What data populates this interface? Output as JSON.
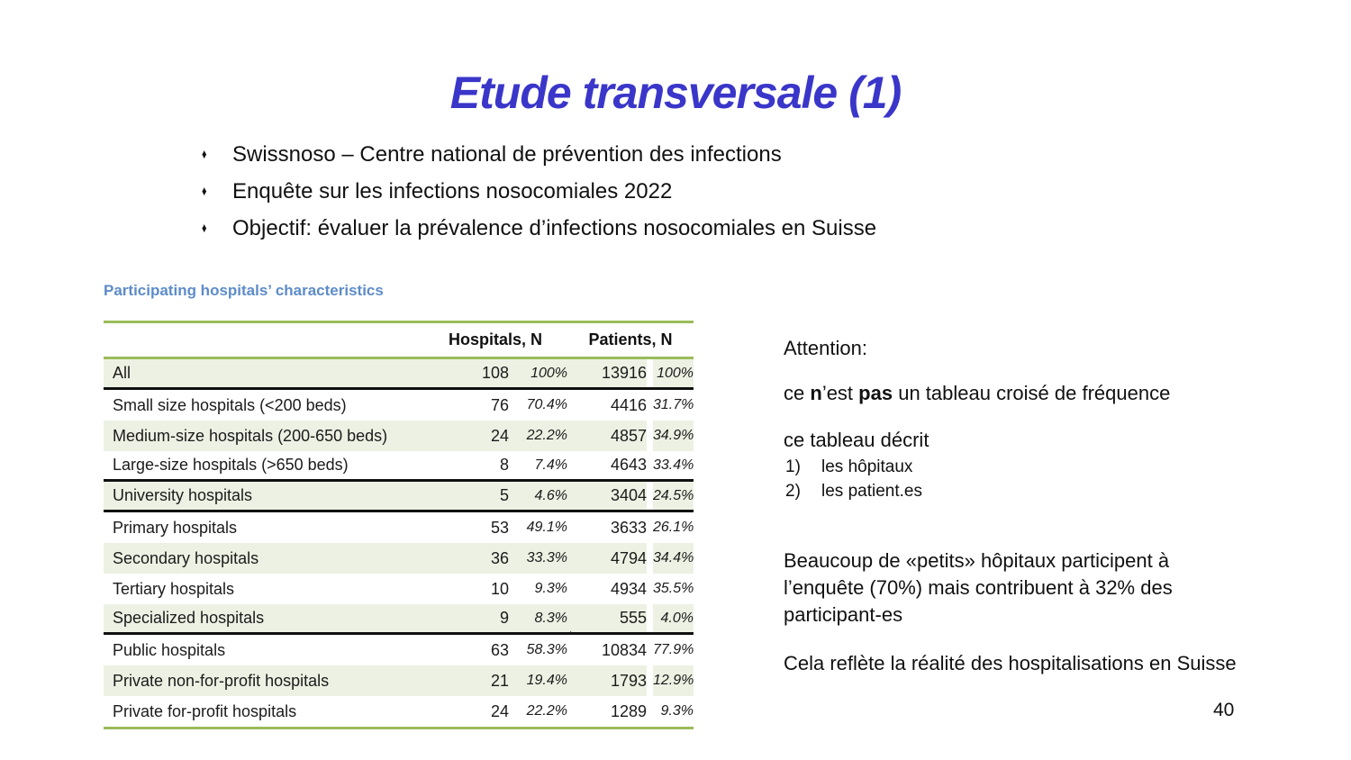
{
  "slide": {
    "title": "Etude transversale (1)",
    "bullet_glyph": "♦",
    "page_number": "40"
  },
  "bullets": [
    "Swissnoso – Centre national de prévention des infections",
    "Enquête sur les infections nosocomiales 2022",
    "Objectif: évaluer la prévalence d’infections nosocomiales en Suisse"
  ],
  "table": {
    "title": "Participating hospitals’ characteristics",
    "col_groups": {
      "hospitals": "Hospitals, N",
      "patients": "Patients, N"
    },
    "rows": [
      {
        "label": "All",
        "hospitals_n": "108",
        "hospitals_pct": "100%",
        "patients_n": "13916",
        "patients_pct": "100%",
        "section_end": true
      },
      {
        "label": "Small size hospitals (<200 beds)",
        "hospitals_n": "76",
        "hospitals_pct": "70.4%",
        "patients_n": "4416",
        "patients_pct": "31.7%"
      },
      {
        "label": "Medium-size hospitals (200-650 beds)",
        "hospitals_n": "24",
        "hospitals_pct": "22.2%",
        "patients_n": "4857",
        "patients_pct": "34.9%"
      },
      {
        "label": "Large-size hospitals (>650 beds)",
        "hospitals_n": "8",
        "hospitals_pct": "7.4%",
        "patients_n": "4643",
        "patients_pct": "33.4%",
        "section_end": true
      },
      {
        "label": "University hospitals",
        "hospitals_n": "5",
        "hospitals_pct": "4.6%",
        "patients_n": "3404",
        "patients_pct": "24.5%",
        "section_end": true
      },
      {
        "label": "Primary hospitals",
        "hospitals_n": "53",
        "hospitals_pct": "49.1%",
        "patients_n": "3633",
        "patients_pct": "26.1%"
      },
      {
        "label": "Secondary hospitals",
        "hospitals_n": "36",
        "hospitals_pct": "33.3%",
        "patients_n": "4794",
        "patients_pct": "34.4%"
      },
      {
        "label": "Tertiary hospitals",
        "hospitals_n": "10",
        "hospitals_pct": "9.3%",
        "patients_n": "4934",
        "patients_pct": "35.5%"
      },
      {
        "label": "Specialized hospitals",
        "hospitals_n": "9",
        "hospitals_pct": "8.3%",
        "patients_n": "555",
        "patients_pct": "4.0%",
        "section_end": true
      },
      {
        "label": "Public hospitals",
        "hospitals_n": "63",
        "hospitals_pct": "58.3%",
        "patients_n": "10834",
        "patients_pct": "77.9%",
        "mark": "·"
      },
      {
        "label": "Private non-for-profit hospitals",
        "hospitals_n": "21",
        "hospitals_pct": "19.4%",
        "patients_n": "1793",
        "patients_pct": "12.9%"
      },
      {
        "label": "Private for-profit hospitals",
        "hospitals_n": "24",
        "hospitals_pct": "22.2%",
        "patients_n": "1289",
        "patients_pct": "9.3%"
      }
    ]
  },
  "notes": {
    "attention": "Attention:",
    "not_crosstab": [
      {
        "text": "ce "
      },
      {
        "text": "n",
        "bold": true
      },
      {
        "text": "’est "
      },
      {
        "text": "pas",
        "bold": true
      },
      {
        "text": " un tableau croisé de fréquence"
      }
    ],
    "describes": "ce tableau décrit",
    "list": [
      {
        "num": "1)",
        "text": "les hôpitaux"
      },
      {
        "num": "2)",
        "text": "les patient.es"
      }
    ],
    "paragraph_lines": [
      "Beaucoup de «petits» hôpitaux participent à",
      "l’enquête (70%) mais contribuent à 32% des",
      "participant-es"
    ],
    "conclusion": "Cela reflète la réalité des hospitalisations en Suisse"
  },
  "colors": {
    "title_blue": "#3a36c9",
    "table_title_blue": "#5d8cc9",
    "line_green": "#9bbb59",
    "row_shade": "#edf1e3"
  }
}
